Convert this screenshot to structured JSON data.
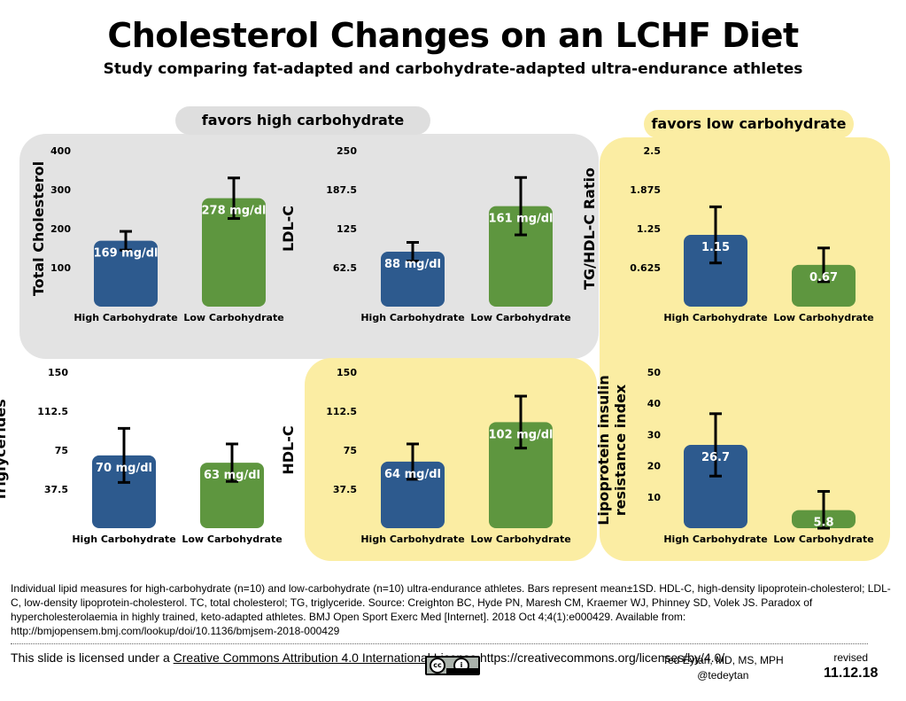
{
  "title": "Cholesterol Changes on an LCHF Diet",
  "subtitle": "Study comparing fat-adapted and carbohydrate-adapted ultra-endurance athletes",
  "labels": {
    "favors_high": "favors high carbohydrate",
    "favors_low": "favors low carbohydrate"
  },
  "colors": {
    "high_carb": "#2d5a8e",
    "low_carb": "#5e963f",
    "gray_panel": "#e3e3e3",
    "yellow_panel": "#fbeda3"
  },
  "chart_data": [
    {
      "type": "bar",
      "ylabel": "Total Cholesterol",
      "ylim": [
        0,
        400
      ],
      "yticks": [
        "100",
        "200",
        "300",
        "400"
      ],
      "categories": [
        "High Carbohydrate",
        "Low Carbohydrate"
      ],
      "values": [
        169,
        278
      ],
      "errors": [
        24,
        52
      ],
      "value_labels": [
        "169 mg/dl",
        "278 mg/dl"
      ]
    },
    {
      "type": "bar",
      "ylabel": "LDL-C",
      "ylim": [
        0,
        250
      ],
      "yticks": [
        "62.5",
        "125",
        "187.5",
        "250"
      ],
      "categories": [
        "High Carbohydrate",
        "Low Carbohydrate"
      ],
      "values": [
        88,
        161
      ],
      "errors": [
        15,
        46
      ],
      "value_labels": [
        "88 mg/dl",
        "161 mg/dl"
      ]
    },
    {
      "type": "bar",
      "ylabel": "TG/HDL-C Ratio",
      "ylim": [
        0,
        2.5
      ],
      "yticks": [
        "0.625",
        "1.25",
        "1.875",
        "2.5"
      ],
      "categories": [
        "High Carbohydrate",
        "Low Carbohydrate"
      ],
      "values": [
        1.15,
        0.67
      ],
      "errors": [
        0.45,
        0.27
      ],
      "value_labels": [
        "1.15",
        "0.67"
      ]
    },
    {
      "type": "bar",
      "ylabel": "Triglycerides",
      "ylim": [
        0,
        150
      ],
      "yticks": [
        "37.5",
        "75",
        "112.5",
        "150"
      ],
      "categories": [
        "High Carbohydrate",
        "Low Carbohydrate"
      ],
      "values": [
        70,
        63
      ],
      "errors": [
        26,
        18
      ],
      "value_labels": [
        "70 mg/dl",
        "63 mg/dl"
      ]
    },
    {
      "type": "bar",
      "ylabel": "HDL-C",
      "ylim": [
        0,
        150
      ],
      "yticks": [
        "37.5",
        "75",
        "112.5",
        "150"
      ],
      "categories": [
        "High Carbohydrate",
        "Low Carbohydrate"
      ],
      "values": [
        64,
        102
      ],
      "errors": [
        17,
        25
      ],
      "value_labels": [
        "64 mg/dl",
        "102 mg/dl"
      ]
    },
    {
      "type": "bar",
      "ylabel_lines": [
        "Lipoprotein insulin",
        "resistance index"
      ],
      "ylim": [
        0,
        50
      ],
      "yticks": [
        "10",
        "20",
        "30",
        "40",
        "50"
      ],
      "categories": [
        "High Carbohydrate",
        "Low Carbohydrate"
      ],
      "values": [
        26.7,
        5.8
      ],
      "errors": [
        10,
        6
      ],
      "value_labels": [
        "26.7",
        "5.8"
      ]
    }
  ],
  "footnote": "Individual lipid measures for high-carbohydrate (n=10) and low-carbohydrate (n=10) ultra-endurance athletes. Bars represent mean±1SD. HDL-C, high-density lipoprotein-cholesterol; LDL-C, low-density lipoprotein-cholesterol. TC, total cholesterol; TG, triglyceride. Source: Creighton BC, Hyde PN, Maresh CM, Kraemer WJ, Phinney SD, Volek JS. Paradox of hypercholesterolaemia in highly trained, keto-adapted athletes. BMJ Open Sport Exerc Med [Internet]. 2018 Oct 4;4(1):e000429. Available from: http://bmjopensem.bmj.com/lookup/doi/10.1136/bmjsem-2018-000429",
  "license": {
    "prefix": "This slide is licensed under a ",
    "link_text": "Creative Commons Attribution 4.0 International License",
    "url": "https://creativecommons.org/licenses/by/4.0/",
    "badge_text": "BY"
  },
  "author": {
    "name": "Ted Eytan, MD, MS, MPH",
    "handle": "@tedeytan"
  },
  "revised": {
    "label": "revised",
    "date": "11.12.18"
  }
}
